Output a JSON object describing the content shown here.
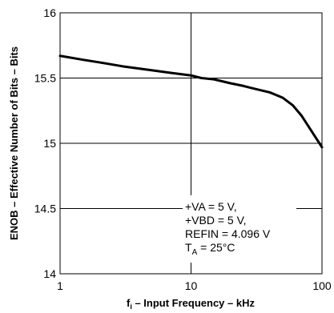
{
  "chart_data": {
    "type": "line",
    "title": "",
    "xlabel": {
      "main": "f",
      "sub": "i",
      "rest": " – Input Frequency – kHz"
    },
    "ylabel": "ENOB – Effective Number of Bits – Bits",
    "xscale": "log",
    "xlim": [
      1,
      100
    ],
    "ylim": [
      14,
      16
    ],
    "grid": true,
    "xticks": [
      {
        "value": 1,
        "label": "1"
      },
      {
        "value": 10,
        "label": "10"
      },
      {
        "value": 100,
        "label": "100"
      }
    ],
    "yticks": [
      {
        "value": 14,
        "label": "14"
      },
      {
        "value": 14.5,
        "label": "14.5"
      },
      {
        "value": 15,
        "label": "15"
      },
      {
        "value": 15.5,
        "label": "15.5"
      },
      {
        "value": 16,
        "label": "16"
      }
    ],
    "series": [
      {
        "x": [
          1,
          1.5,
          2,
          3,
          5,
          7,
          10,
          12,
          15,
          20,
          25,
          30,
          40,
          50,
          60,
          70,
          80,
          100
        ],
        "y": [
          15.67,
          15.64,
          15.62,
          15.59,
          15.56,
          15.54,
          15.52,
          15.5,
          15.49,
          15.46,
          15.44,
          15.42,
          15.39,
          15.35,
          15.29,
          15.21,
          15.12,
          14.97
        ]
      }
    ],
    "annotations": {
      "lines": [
        {
          "text": "+VA = 5 V,"
        },
        {
          "text": "+VBD = 5 V,"
        },
        {
          "text": "REFIN = 4.096 V"
        },
        {
          "text": "T",
          "sub": "A",
          "rest": " = 25°C"
        }
      ]
    }
  }
}
